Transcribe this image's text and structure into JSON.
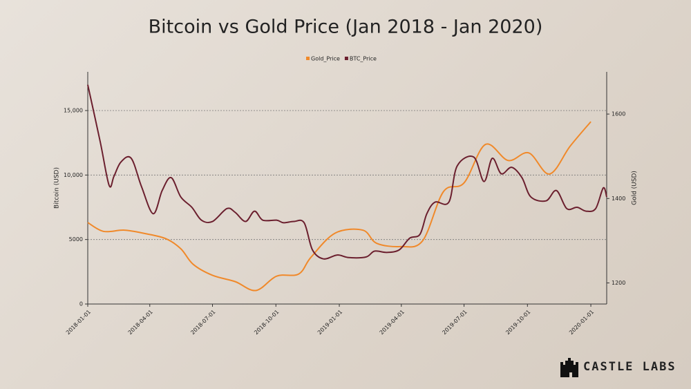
{
  "chart_data": {
    "type": "line",
    "title": "Bitcoin vs Gold Price (Jan 2018 - Jan 2020)",
    "y_label": "Bitcoin (USD)",
    "y2_label": "Gold (USD)",
    "xlim": [
      "2018-01-01",
      "2020-01-24"
    ],
    "xticks": [
      "2018-01-01",
      "2018-04-01",
      "2018-07-01",
      "2018-10-01",
      "2019-01-01",
      "2019-04-01",
      "2019-07-01",
      "2019-10-01",
      "2020-01-01"
    ],
    "ylim": [
      0,
      18000
    ],
    "yticks": [
      0,
      5000,
      {
        "value": 10000,
        "label": "10,000"
      },
      {
        "value": 15000,
        "label": "15,000"
      }
    ],
    "y2lim": [
      1150,
      1700
    ],
    "y2ticks": [
      1200,
      1400,
      1600
    ],
    "grid": true,
    "legend": "top",
    "series": [
      {
        "name": "Gold_Price",
        "color": "#f0892a",
        "axis": "y2",
        "x": [
          "2018-01-01",
          "2018-01-24",
          "2018-02-23",
          "2018-03-25",
          "2018-04-24",
          "2018-05-16",
          "2018-06-03",
          "2018-07-01",
          "2018-08-03",
          "2018-09-02",
          "2018-10-02",
          "2018-11-03",
          "2018-11-21",
          "2018-12-26",
          "2019-02-04",
          "2019-02-24",
          "2019-03-31",
          "2019-05-02",
          "2019-06-01",
          "2019-07-01",
          "2019-08-01",
          "2019-09-03",
          "2019-10-03",
          "2019-11-02",
          "2019-12-02",
          "2020-01-01"
        ],
        "values": [
          1343,
          1322,
          1325,
          1317,
          1305,
          1281,
          1244,
          1218,
          1203,
          1182,
          1216,
          1221,
          1261,
          1318,
          1325,
          1294,
          1286,
          1300,
          1416,
          1437,
          1528,
          1490,
          1508,
          1458,
          1524,
          1582
        ]
      },
      {
        "name": "BTC_Price",
        "color": "#6b1f2e",
        "x": [
          "2018-01-01",
          "2018-01-19",
          "2018-02-01",
          "2018-02-08",
          "2018-02-18",
          "2018-03-05",
          "2018-03-20",
          "2018-04-06",
          "2018-04-19",
          "2018-05-02",
          "2018-05-16",
          "2018-06-01",
          "2018-06-15",
          "2018-07-01",
          "2018-07-22",
          "2018-08-03",
          "2018-08-18",
          "2018-08-31",
          "2018-09-12",
          "2018-10-02",
          "2018-10-12",
          "2018-10-27",
          "2018-11-11",
          "2018-11-23",
          "2018-12-09",
          "2018-12-29",
          "2019-01-15",
          "2019-02-09",
          "2019-02-21",
          "2019-03-11",
          "2019-03-29",
          "2019-04-13",
          "2019-04-28",
          "2019-05-08",
          "2019-05-20",
          "2019-06-09",
          "2019-06-21",
          "2019-07-15",
          "2019-07-30",
          "2019-08-11",
          "2019-08-24",
          "2019-09-08",
          "2019-09-23",
          "2019-10-06",
          "2019-10-28",
          "2019-11-12",
          "2019-11-27",
          "2019-12-12",
          "2019-12-25",
          "2020-01-08",
          "2020-01-19",
          "2020-01-24"
        ],
        "values": [
          17000,
          12600,
          9200,
          9900,
          11000,
          11300,
          9100,
          7000,
          8800,
          9800,
          8300,
          7500,
          6500,
          6400,
          7400,
          7100,
          6400,
          7200,
          6500,
          6500,
          6300,
          6400,
          6300,
          4200,
          3500,
          3800,
          3600,
          3650,
          4100,
          4000,
          4200,
          5100,
          5400,
          7000,
          7900,
          7900,
          10700,
          11400,
          9500,
          11300,
          10100,
          10600,
          9800,
          8300,
          8000,
          8800,
          7400,
          7500,
          7200,
          7400,
          9000,
          8300
        ]
      }
    ]
  },
  "branding": "CASTLE LABS"
}
